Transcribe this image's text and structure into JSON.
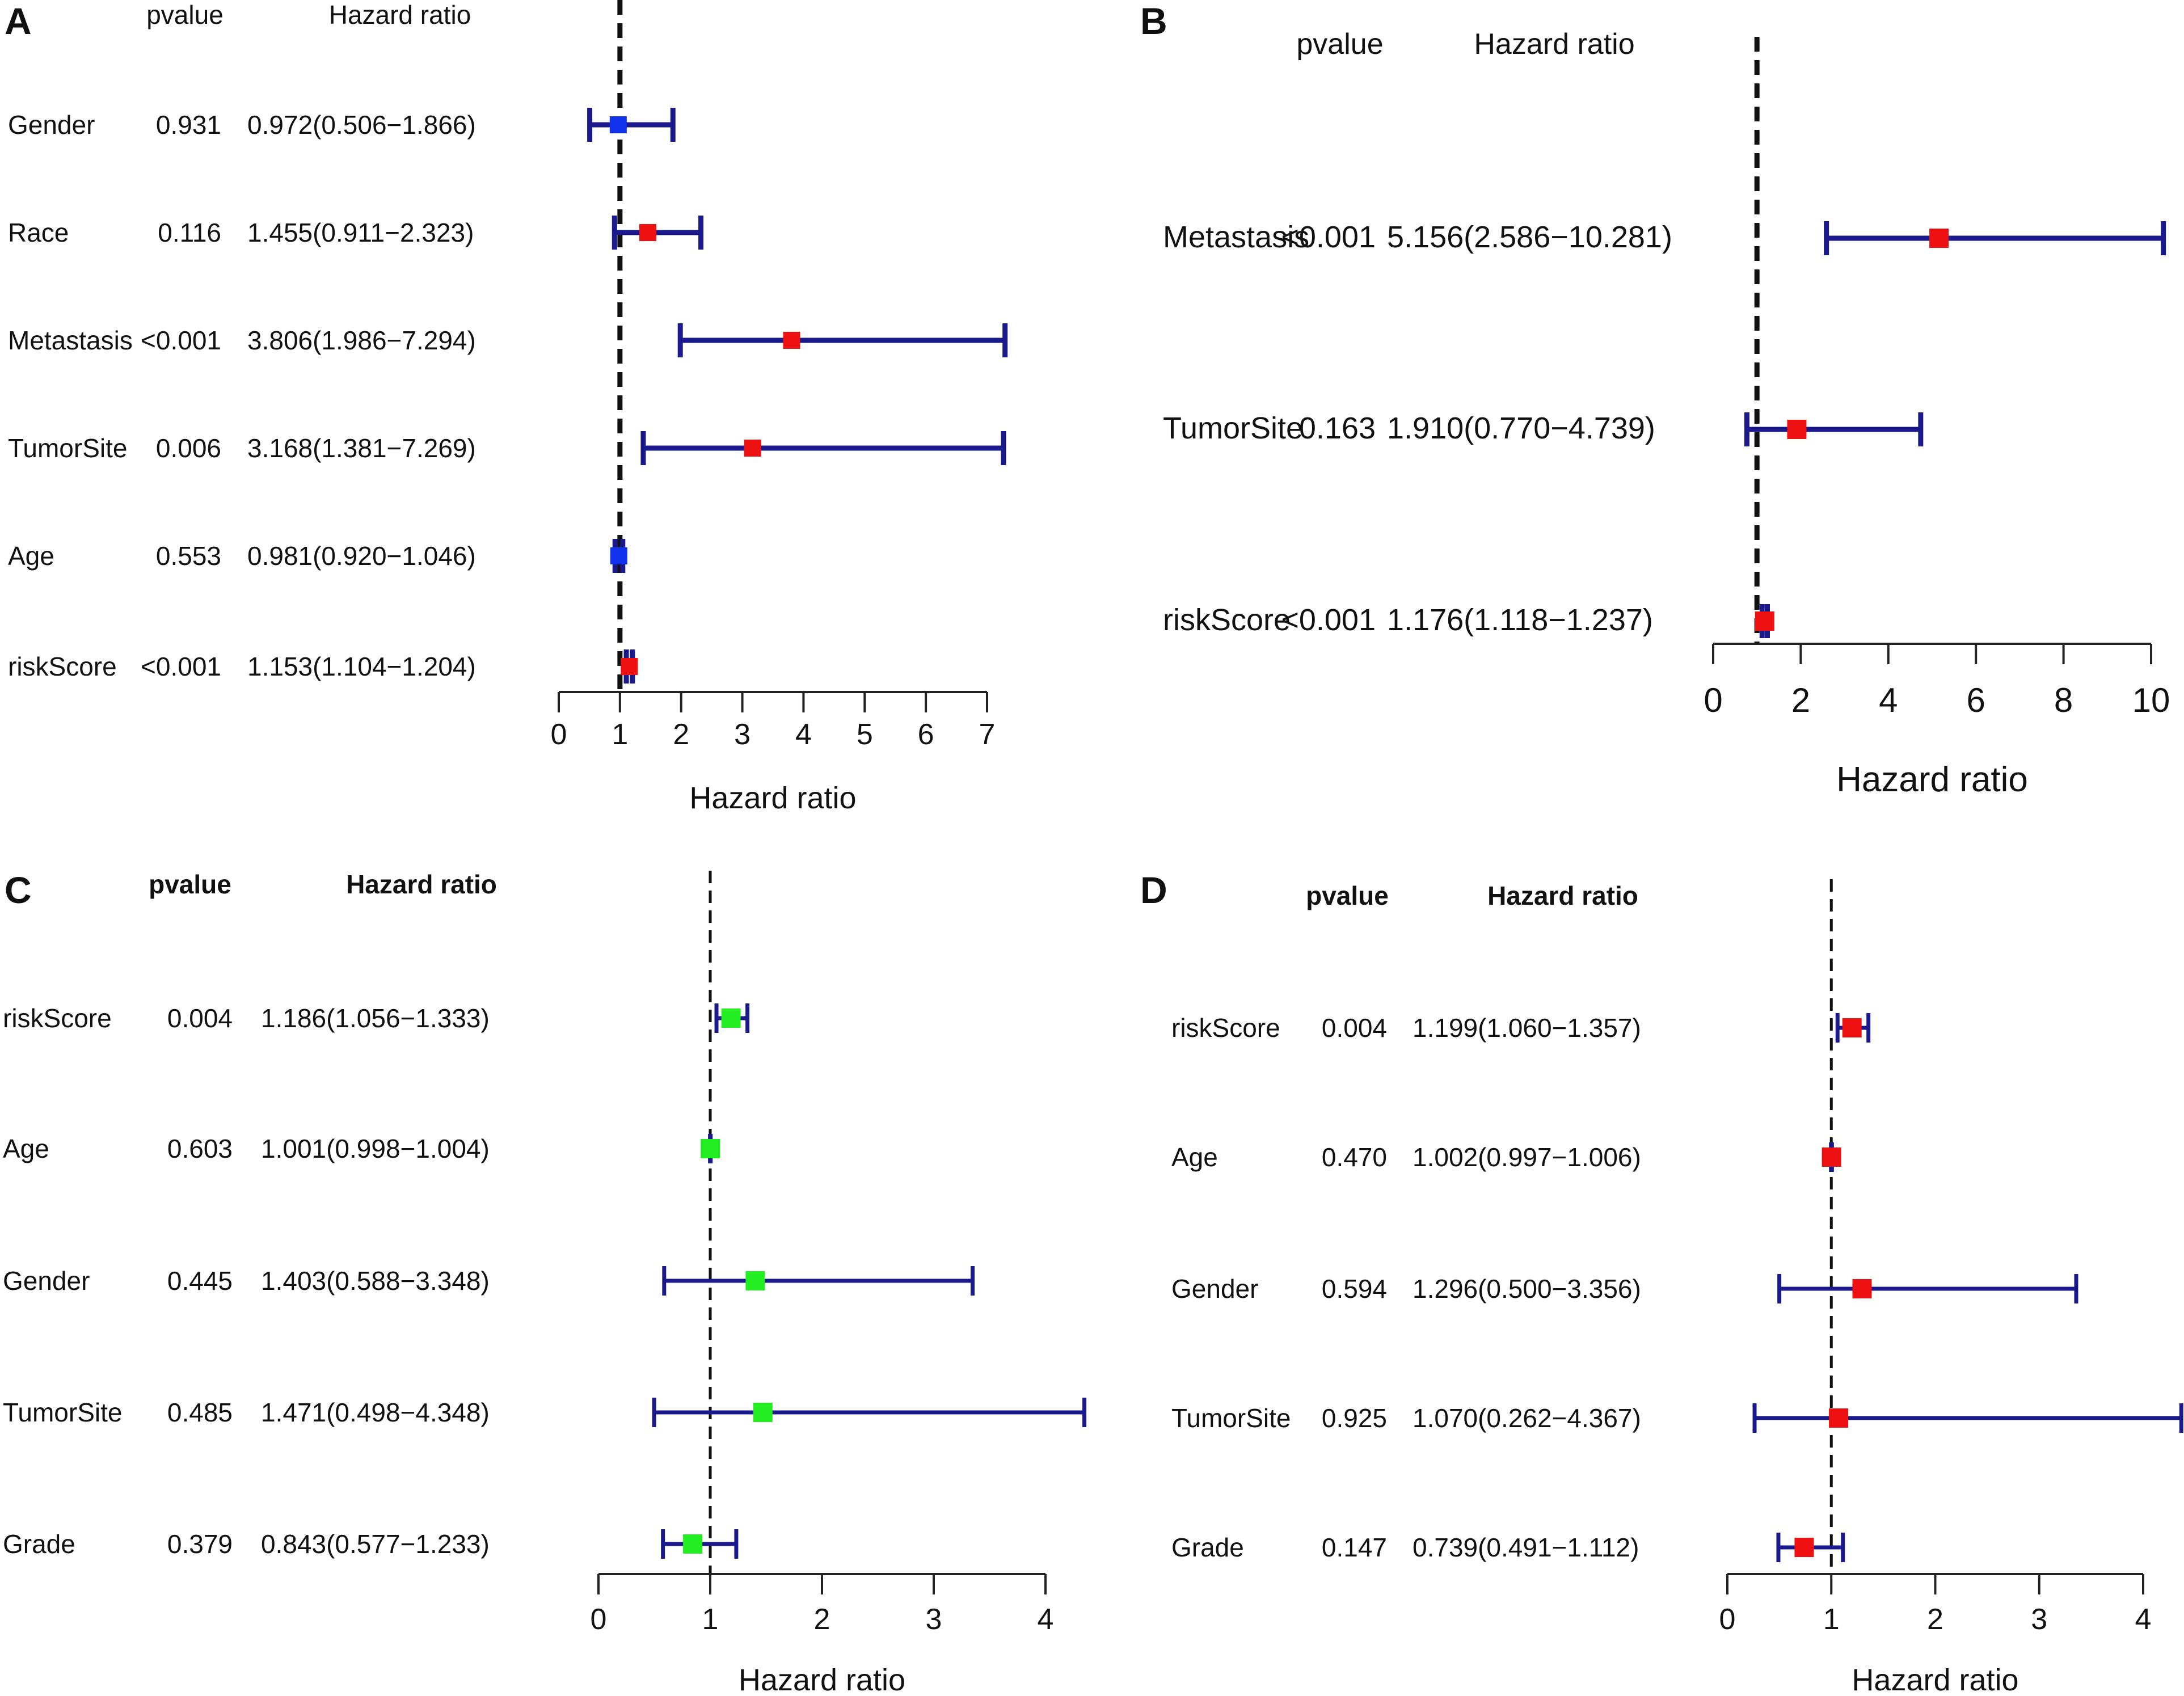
{
  "chart_data": [
    {
      "type": "forest",
      "panel": "A",
      "headers": {
        "pvalue": "pvalue",
        "hr": "Hazard ratio"
      },
      "rows": [
        {
          "variable": "Gender",
          "pvalue": "0.931",
          "hr_text": "0.972(0.506−1.866)",
          "hr": 0.972,
          "lower": 0.506,
          "upper": 1.866,
          "marker": "blue"
        },
        {
          "variable": "Race",
          "pvalue": "0.116",
          "hr_text": "1.455(0.911−2.323)",
          "hr": 1.455,
          "lower": 0.911,
          "upper": 2.323,
          "marker": "red"
        },
        {
          "variable": "Metastasis",
          "pvalue": "<0.001",
          "hr_text": "3.806(1.986−7.294)",
          "hr": 3.806,
          "lower": 1.986,
          "upper": 7.294,
          "marker": "red"
        },
        {
          "variable": "TumorSite",
          "pvalue": "0.006",
          "hr_text": "3.168(1.381−7.269)",
          "hr": 3.168,
          "lower": 1.381,
          "upper": 7.269,
          "marker": "red"
        },
        {
          "variable": "Age",
          "pvalue": "0.553",
          "hr_text": "0.981(0.920−1.046)",
          "hr": 0.981,
          "lower": 0.92,
          "upper": 1.046,
          "marker": "blue"
        },
        {
          "variable": "riskScore",
          "pvalue": "<0.001",
          "hr_text": "1.153(1.104−1.204)",
          "hr": 1.153,
          "lower": 1.104,
          "upper": 1.204,
          "marker": "red"
        }
      ],
      "reference_line": 1,
      "xlim": [
        0,
        7
      ],
      "xticks": [
        0,
        1,
        2,
        3,
        4,
        5,
        6,
        7
      ],
      "xlabel": "Hazard ratio"
    },
    {
      "type": "forest",
      "panel": "B",
      "headers": {
        "pvalue": "pvalue",
        "hr": "Hazard ratio"
      },
      "rows": [
        {
          "variable": "Metastasis",
          "pvalue": "<0.001",
          "hr_text": "5.156(2.586−10.281)",
          "hr": 5.156,
          "lower": 2.586,
          "upper": 10.281,
          "marker": "red"
        },
        {
          "variable": "TumorSite",
          "pvalue": "0.163",
          "hr_text": "1.910(0.770−4.739)",
          "hr": 1.91,
          "lower": 0.77,
          "upper": 4.739,
          "marker": "red"
        },
        {
          "variable": "riskScore",
          "pvalue": "<0.001",
          "hr_text": "1.176(1.118−1.237)",
          "hr": 1.176,
          "lower": 1.118,
          "upper": 1.237,
          "marker": "red"
        }
      ],
      "reference_line": 1,
      "xlim": [
        0,
        10
      ],
      "xticks": [
        0,
        2,
        4,
        6,
        8,
        10
      ],
      "xlabel": "Hazard ratio"
    },
    {
      "type": "forest",
      "panel": "C",
      "headers": {
        "pvalue": "pvalue",
        "hr": "Hazard ratio"
      },
      "rows": [
        {
          "variable": "riskScore",
          "pvalue": "0.004",
          "hr_text": "1.186(1.056−1.333)",
          "hr": 1.186,
          "lower": 1.056,
          "upper": 1.333,
          "marker": "green"
        },
        {
          "variable": "Age",
          "pvalue": "0.603",
          "hr_text": "1.001(0.998−1.004)",
          "hr": 1.001,
          "lower": 0.998,
          "upper": 1.004,
          "marker": "green"
        },
        {
          "variable": "Gender",
          "pvalue": "0.445",
          "hr_text": "1.403(0.588−3.348)",
          "hr": 1.403,
          "lower": 0.588,
          "upper": 3.348,
          "marker": "green"
        },
        {
          "variable": "TumorSite",
          "pvalue": "0.485",
          "hr_text": "1.471(0.498−4.348)",
          "hr": 1.471,
          "lower": 0.498,
          "upper": 4.348,
          "marker": "green"
        },
        {
          "variable": "Grade",
          "pvalue": "0.379",
          "hr_text": "0.843(0.577−1.233)",
          "hr": 0.843,
          "lower": 0.577,
          "upper": 1.233,
          "marker": "green"
        }
      ],
      "reference_line": 1,
      "xlim": [
        0,
        4
      ],
      "xticks": [
        0,
        1,
        2,
        3,
        4
      ],
      "xlabel": "Hazard ratio"
    },
    {
      "type": "forest",
      "panel": "D",
      "headers": {
        "pvalue": "pvalue",
        "hr": "Hazard ratio"
      },
      "rows": [
        {
          "variable": "riskScore",
          "pvalue": "0.004",
          "hr_text": "1.199(1.060−1.357)",
          "hr": 1.199,
          "lower": 1.06,
          "upper": 1.357,
          "marker": "red"
        },
        {
          "variable": "Age",
          "pvalue": "0.470",
          "hr_text": "1.002(0.997−1.006)",
          "hr": 1.002,
          "lower": 0.997,
          "upper": 1.006,
          "marker": "red"
        },
        {
          "variable": "Gender",
          "pvalue": "0.594",
          "hr_text": "1.296(0.500−3.356)",
          "hr": 1.296,
          "lower": 0.5,
          "upper": 3.356,
          "marker": "red"
        },
        {
          "variable": "TumorSite",
          "pvalue": "0.925",
          "hr_text": "1.070(0.262−4.367)",
          "hr": 1.07,
          "lower": 0.262,
          "upper": 4.367,
          "marker": "red"
        },
        {
          "variable": "Grade",
          "pvalue": "0.147",
          "hr_text": "0.739(0.491−1.112)",
          "hr": 0.739,
          "lower": 0.491,
          "upper": 1.112,
          "marker": "red"
        }
      ],
      "reference_line": 1,
      "xlim": [
        0,
        4
      ],
      "xticks": [
        0,
        1,
        2,
        3,
        4
      ],
      "xlabel": "Hazard ratio"
    }
  ],
  "colors": {
    "whisker": "#1a1a8c",
    "red": "#ee1111",
    "blue": "#1133ee",
    "green": "#22ee22",
    "reference": "#111111",
    "axis": "#222222"
  }
}
